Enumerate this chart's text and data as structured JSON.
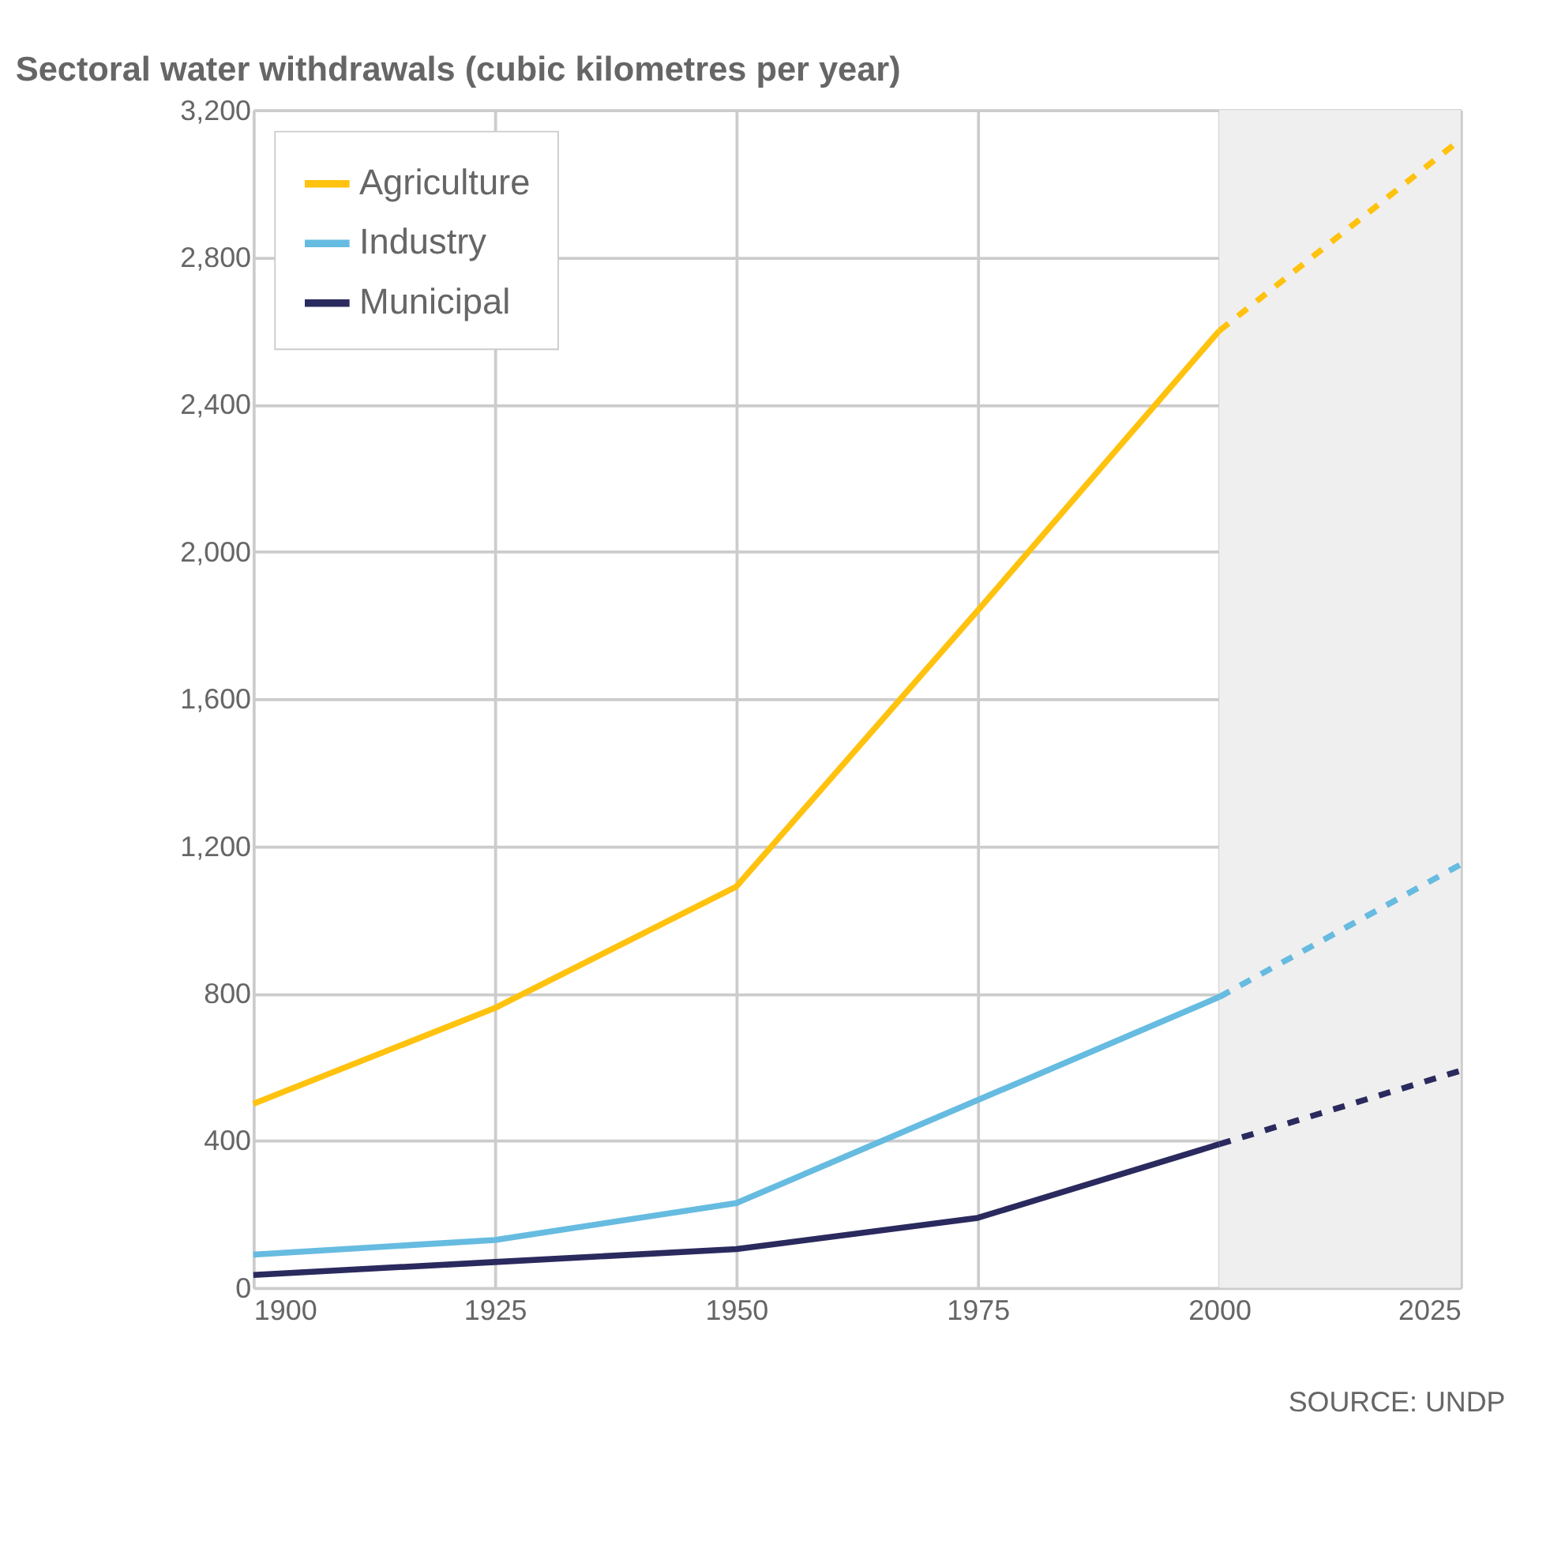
{
  "chart_data": {
    "type": "line",
    "title": "Sectoral water withdrawals (cubic kilometres per year)",
    "series": [
      {
        "name": "Agriculture",
        "color": "#ffc20e",
        "line_style": "solid",
        "x": [
          1900,
          1925,
          1950,
          1975,
          2000
        ],
        "values": [
          500,
          760,
          1090,
          1840,
          2600
        ]
      },
      {
        "name": "Industry",
        "color": "#66bbe0",
        "line_style": "solid",
        "x": [
          1900,
          1925,
          1950,
          1975,
          2000
        ],
        "values": [
          90,
          130,
          230,
          510,
          790
        ]
      },
      {
        "name": "Municipal",
        "color": "#2b2a5e",
        "line_style": "solid",
        "x": [
          1900,
          1925,
          1950,
          1975,
          2000
        ],
        "values": [
          35,
          70,
          105,
          190,
          390
        ]
      },
      {
        "color": "#ffc20e",
        "line_style": "dashed",
        "x": [
          2000,
          2025
        ],
        "values": [
          2600,
          3120
        ]
      },
      {
        "color": "#66bbe0",
        "line_style": "dashed",
        "x": [
          2000,
          2025
        ],
        "values": [
          790,
          1150
        ]
      },
      {
        "color": "#2b2a5e",
        "line_style": "dashed",
        "x": [
          2000,
          2025
        ],
        "values": [
          390,
          590
        ]
      }
    ],
    "xlim": [
      1900,
      2025
    ],
    "xticks": [
      1900,
      1925,
      1950,
      1975,
      2000,
      2025
    ],
    "ylim": [
      0,
      3200
    ],
    "yticks": [
      {
        "value": 0,
        "label": "0"
      },
      {
        "value": 400,
        "label": "400"
      },
      {
        "value": 800,
        "label": "800"
      },
      {
        "value": 1200,
        "label": "1,200"
      },
      {
        "value": 1600,
        "label": "1,600"
      },
      {
        "value": 2000,
        "label": "2,000"
      },
      {
        "value": 2400,
        "label": "2,400"
      },
      {
        "value": 2800,
        "label": "2,800"
      },
      {
        "value": 3200,
        "label": "3,200"
      }
    ],
    "bands": [
      {
        "axis": "x",
        "from": 2000,
        "to": 2025,
        "color": "#efefef"
      }
    ],
    "grid": true,
    "legend": "top left",
    "annotations": [
      "SOURCE: UNDP"
    ]
  }
}
